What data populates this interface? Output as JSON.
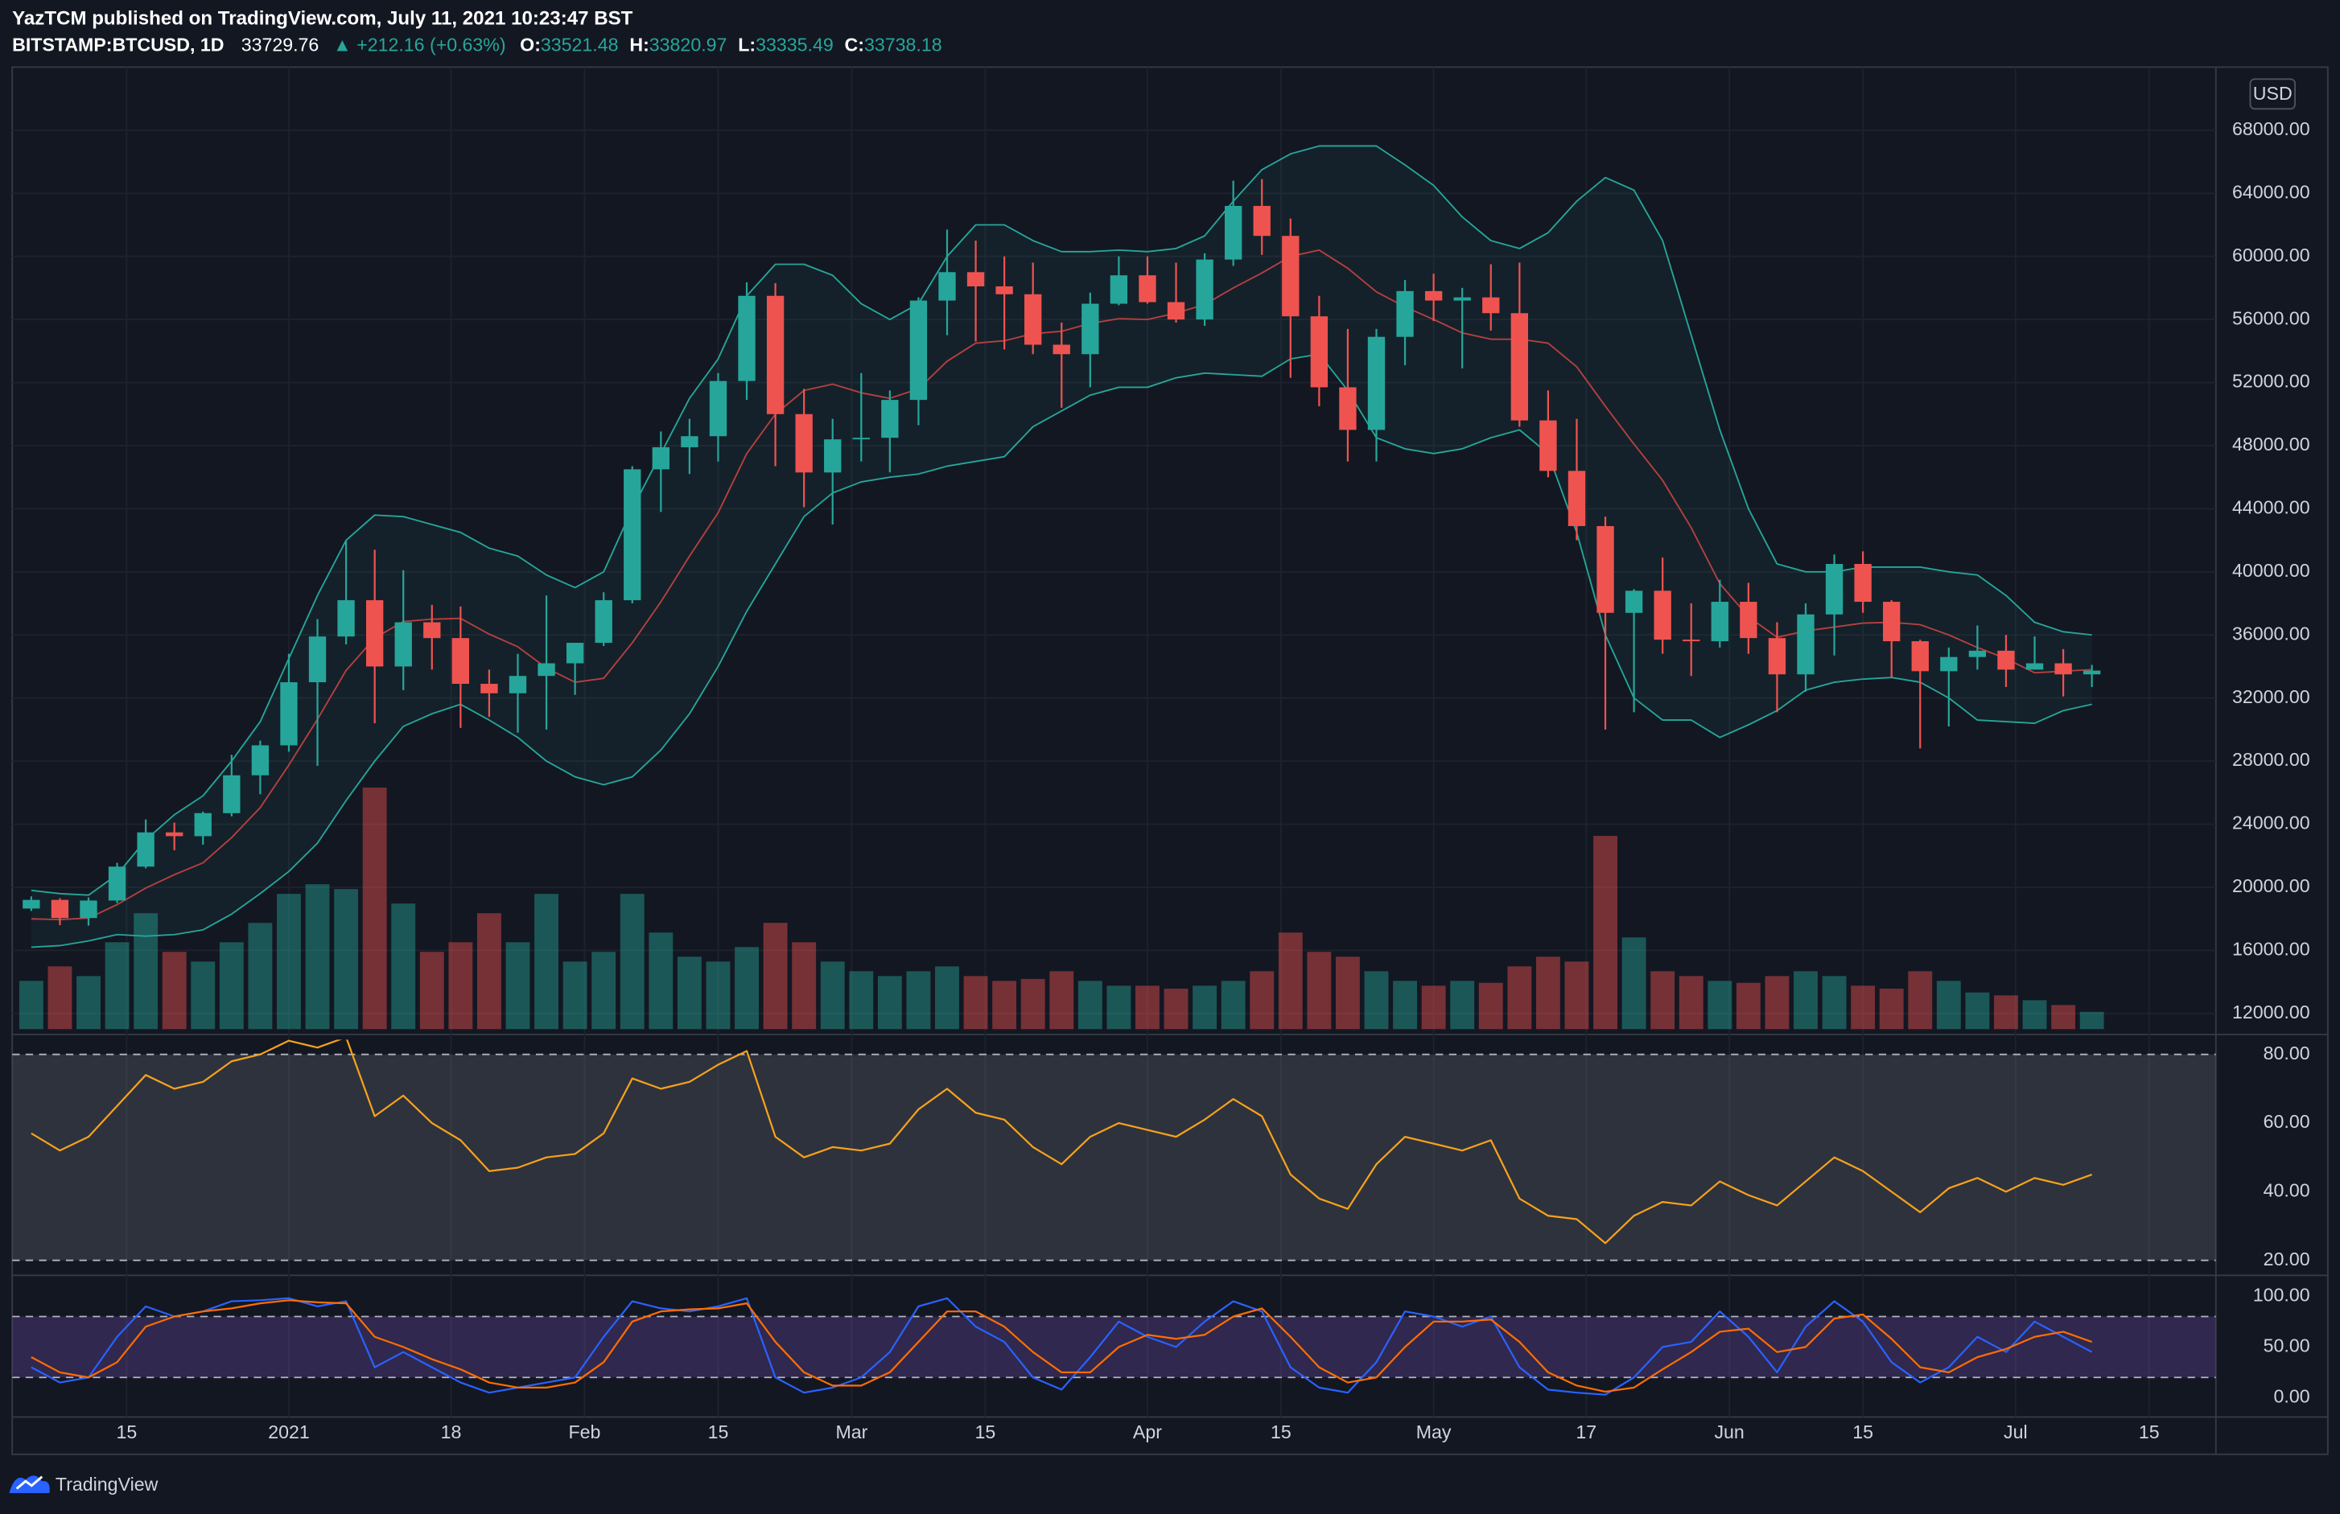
{
  "header": {
    "title": "YazTCM published on TradingView.com, July 11, 2021 10:23:47 BST",
    "symbol": "BITSTAMP:BTCUSD, 1D",
    "last": "33729.76",
    "change": "▲ +212.16 (+0.63%)",
    "ohlc": [
      {
        "label": "O:",
        "value": "33521.48"
      },
      {
        "label": "H:",
        "value": "33820.97"
      },
      {
        "label": "L:",
        "value": "33335.49"
      },
      {
        "label": "C:",
        "value": "33738.18"
      }
    ]
  },
  "brand": "TradingView",
  "chart_data": {
    "type": "candlestick",
    "currency": "USD",
    "up_color": "#26a69a",
    "down_color": "#ef5350",
    "x": [
      "2020-12-05",
      "2020-12-08",
      "2020-12-11",
      "2020-12-14",
      "2020-12-17",
      "2020-12-20",
      "2020-12-23",
      "2020-12-26",
      "2020-12-29",
      "2021-01-01",
      "2021-01-04",
      "2021-01-07",
      "2021-01-10",
      "2021-01-13",
      "2021-01-16",
      "2021-01-19",
      "2021-01-22",
      "2021-01-25",
      "2021-01-28",
      "2021-01-31",
      "2021-02-03",
      "2021-02-06",
      "2021-02-09",
      "2021-02-12",
      "2021-02-15",
      "2021-02-18",
      "2021-02-21",
      "2021-02-24",
      "2021-02-27",
      "2021-03-02",
      "2021-03-05",
      "2021-03-08",
      "2021-03-11",
      "2021-03-14",
      "2021-03-17",
      "2021-03-20",
      "2021-03-23",
      "2021-03-26",
      "2021-03-29",
      "2021-04-01",
      "2021-04-04",
      "2021-04-07",
      "2021-04-10",
      "2021-04-13",
      "2021-04-16",
      "2021-04-19",
      "2021-04-22",
      "2021-04-25",
      "2021-04-28",
      "2021-05-01",
      "2021-05-04",
      "2021-05-07",
      "2021-05-10",
      "2021-05-13",
      "2021-05-16",
      "2021-05-19",
      "2021-05-22",
      "2021-05-25",
      "2021-05-28",
      "2021-05-31",
      "2021-06-03",
      "2021-06-06",
      "2021-06-09",
      "2021-06-12",
      "2021-06-15",
      "2021-06-18",
      "2021-06-21",
      "2021-06-24",
      "2021-06-27",
      "2021-06-30",
      "2021-07-03",
      "2021-07-06",
      "2021-07-09"
    ],
    "open": [
      18650,
      19200,
      18050,
      19160,
      21310,
      23480,
      23240,
      24700,
      27100,
      29000,
      33000,
      35900,
      38200,
      34000,
      36800,
      35800,
      32900,
      32300,
      33400,
      34200,
      35500,
      38200,
      46500,
      47900,
      48600,
      52100,
      57500,
      50000,
      46300,
      48400,
      48500,
      50900,
      57200,
      59000,
      58100,
      57600,
      54400,
      53800,
      57000,
      58800,
      57100,
      56000,
      59800,
      63200,
      61300,
      56200,
      51700,
      49000,
      54900,
      57800,
      57200,
      57400,
      56400,
      49600,
      46400,
      42900,
      37400,
      38800,
      35700,
      35600,
      38100,
      35800,
      33500,
      37300,
      40500,
      38100,
      35600,
      33700,
      34600,
      35000,
      33800,
      34200,
      33500
    ],
    "high": [
      19420,
      19300,
      19350,
      21550,
      24300,
      24100,
      24800,
      28400,
      29300,
      34800,
      37000,
      41950,
      41400,
      40100,
      37900,
      37800,
      33800,
      34800,
      38500,
      35500,
      38700,
      46700,
      48900,
      49700,
      52600,
      58350,
      58300,
      51600,
      49700,
      52600,
      51500,
      57400,
      61700,
      61000,
      60000,
      59600,
      55800,
      57700,
      60000,
      60000,
      59600,
      60200,
      64800,
      64900,
      62400,
      57500,
      55400,
      55400,
      58500,
      58900,
      58000,
      59500,
      59600,
      51500,
      49700,
      43500,
      38900,
      40900,
      38000,
      39500,
      39300,
      36800,
      38000,
      41100,
      41300,
      38200,
      35700,
      35200,
      36600,
      36000,
      35900,
      35100,
      34100
    ],
    "low": [
      18500,
      17600,
      17570,
      19000,
      21200,
      22350,
      22700,
      24500,
      25900,
      28600,
      27700,
      35400,
      30400,
      32500,
      33800,
      30100,
      30800,
      29800,
      30000,
      32200,
      35300,
      38000,
      43800,
      46200,
      47000,
      50900,
      46700,
      44100,
      43000,
      47000,
      46300,
      49300,
      55000,
      54600,
      54100,
      53800,
      50400,
      51700,
      56900,
      57000,
      55800,
      55600,
      59400,
      60100,
      52300,
      50500,
      47000,
      47000,
      53100,
      55900,
      52900,
      55300,
      49200,
      46000,
      42000,
      30000,
      31100,
      34800,
      33400,
      35200,
      34800,
      31100,
      32400,
      34700,
      37400,
      33300,
      28800,
      30200,
      33800,
      32700,
      33800,
      32100,
      32700
    ],
    "close": [
      19200,
      18050,
      19160,
      21310,
      23480,
      23240,
      24700,
      27100,
      29000,
      33000,
      35900,
      38200,
      34000,
      36800,
      35800,
      32900,
      32300,
      33400,
      34200,
      35500,
      38200,
      46500,
      47900,
      48600,
      52100,
      57500,
      50000,
      46300,
      48400,
      48500,
      50900,
      57200,
      59000,
      58100,
      57600,
      54400,
      53800,
      57000,
      58800,
      57100,
      56000,
      59800,
      63200,
      61300,
      56200,
      51700,
      49000,
      54900,
      57800,
      57200,
      57400,
      56400,
      49600,
      46400,
      42900,
      37400,
      38800,
      35700,
      35600,
      38100,
      35800,
      33500,
      37300,
      40500,
      38100,
      35600,
      33700,
      34600,
      35000,
      33800,
      34200,
      33500,
      33738
    ],
    "volume": [
      5000,
      6500,
      5500,
      9000,
      12000,
      8000,
      7000,
      9000,
      11000,
      14000,
      15000,
      14500,
      25000,
      13000,
      8000,
      9000,
      12000,
      9000,
      14000,
      7000,
      8000,
      14000,
      10000,
      7500,
      7000,
      8500,
      11000,
      9000,
      7000,
      6000,
      5500,
      6000,
      6500,
      5500,
      5000,
      5200,
      6000,
      5000,
      4500,
      4500,
      4200,
      4500,
      5000,
      6000,
      10000,
      8000,
      7500,
      6000,
      5000,
      4500,
      5000,
      4800,
      6500,
      7500,
      7000,
      20000,
      9500,
      6000,
      5500,
      5000,
      4800,
      5500,
      6000,
      5500,
      4500,
      4200,
      6000,
      5000,
      3800,
      3500,
      3000,
      2500,
      1800
    ],
    "bollinger": {
      "color": "#26a69a",
      "basis_color": "#b7403f",
      "upper": [
        19800,
        19600,
        19500,
        20800,
        23000,
        24600,
        25800,
        28000,
        30500,
        34500,
        38500,
        42000,
        43600,
        43500,
        43000,
        42500,
        41500,
        41000,
        39800,
        39000,
        40000,
        44000,
        47500,
        51000,
        53500,
        57500,
        59500,
        59500,
        58800,
        57000,
        56000,
        57000,
        60000,
        62000,
        62000,
        61000,
        60300,
        60300,
        60400,
        60300,
        60500,
        61300,
        63500,
        65500,
        66500,
        67000,
        67000,
        67000,
        65800,
        64500,
        62500,
        61000,
        60500,
        61500,
        63500,
        65000,
        64200,
        61000,
        55000,
        49000,
        44000,
        40500,
        40000,
        40000,
        40300,
        40300,
        40300,
        40000,
        39800,
        38500,
        36800,
        36200,
        36000
      ],
      "basis": [
        18000,
        17950,
        18050,
        18900,
        19950,
        20800,
        21550,
        23150,
        25050,
        27750,
        30650,
        33750,
        35800,
        36850,
        37000,
        37050,
        36050,
        35250,
        33900,
        33000,
        33250,
        35500,
        38100,
        41000,
        43750,
        47500,
        50000,
        51500,
        51900,
        51350,
        51000,
        51600,
        53350,
        54500,
        54650,
        55100,
        55250,
        55750,
        56050,
        56000,
        56400,
        56950,
        58000,
        58950,
        60000,
        60400,
        59250,
        57750,
        56800,
        56000,
        55150,
        54750,
        54750,
        54500,
        53000,
        50500,
        48100,
        45800,
        42800,
        39250,
        37150,
        35850,
        36250,
        36500,
        36750,
        36800,
        36650,
        36000,
        35200,
        34500,
        33600,
        33700,
        33800
      ],
      "lower": [
        16200,
        16300,
        16600,
        17000,
        16900,
        17000,
        17300,
        18300,
        19600,
        21000,
        22800,
        25500,
        28000,
        30200,
        31000,
        31600,
        30600,
        29500,
        28000,
        27000,
        26500,
        27000,
        28700,
        31000,
        34000,
        37500,
        40500,
        43500,
        45000,
        45700,
        46000,
        46200,
        46700,
        47000,
        47300,
        49200,
        50200,
        51200,
        51700,
        51700,
        52300,
        52600,
        52500,
        52400,
        53500,
        53800,
        51500,
        48500,
        47800,
        47500,
        47800,
        48500,
        49000,
        47500,
        42500,
        36000,
        32000,
        30600,
        30600,
        29500,
        30300,
        31200,
        32500,
        33000,
        33200,
        33300,
        33000,
        32000,
        30600,
        30500,
        30400,
        31200,
        31600
      ]
    },
    "xlim": [
      "2020-12-03",
      "2021-07-22"
    ],
    "xticks": [
      {
        "value": "2020-12-15",
        "label": "15"
      },
      {
        "value": "2021-01-01",
        "label": "2021"
      },
      {
        "value": "2021-01-18",
        "label": "18"
      },
      {
        "value": "2021-02-01",
        "label": "Feb"
      },
      {
        "value": "2021-02-15",
        "label": "15"
      },
      {
        "value": "2021-03-01",
        "label": "Mar"
      },
      {
        "value": "2021-03-15",
        "label": "15"
      },
      {
        "value": "2021-04-01",
        "label": "Apr"
      },
      {
        "value": "2021-04-15",
        "label": "15"
      },
      {
        "value": "2021-05-01",
        "label": "May"
      },
      {
        "value": "2021-05-17",
        "label": "17"
      },
      {
        "value": "2021-06-01",
        "label": "Jun"
      },
      {
        "value": "2021-06-15",
        "label": "15"
      },
      {
        "value": "2021-07-01",
        "label": "Jul"
      },
      {
        "value": "2021-07-15",
        "label": "15"
      }
    ],
    "ylim": [
      11000,
      72000
    ],
    "yticks": [
      {
        "value": 12000,
        "label": "12000.00"
      },
      {
        "value": 16000,
        "label": "16000.00"
      },
      {
        "value": 20000,
        "label": "20000.00"
      },
      {
        "value": 24000,
        "label": "24000.00"
      },
      {
        "value": 28000,
        "label": "28000.00"
      },
      {
        "value": 32000,
        "label": "32000.00"
      },
      {
        "value": 36000,
        "label": "36000.00"
      },
      {
        "value": 40000,
        "label": "40000.00"
      },
      {
        "value": 44000,
        "label": "44000.00"
      },
      {
        "value": 48000,
        "label": "48000.00"
      },
      {
        "value": 52000,
        "label": "52000.00"
      },
      {
        "value": 56000,
        "label": "56000.00"
      },
      {
        "value": 60000,
        "label": "60000.00"
      },
      {
        "value": 64000,
        "label": "64000.00"
      },
      {
        "value": 68000,
        "label": "68000.00"
      }
    ],
    "grid": true,
    "rsi": {
      "type": "line",
      "color": "#f7a21b",
      "band_color": "#787b86",
      "bands": [
        20,
        80
      ],
      "values": [
        57,
        52,
        56,
        65,
        74,
        70,
        72,
        78,
        80,
        84,
        82,
        85,
        62,
        68,
        60,
        55,
        46,
        47,
        50,
        51,
        57,
        73,
        70,
        72,
        77,
        81,
        56,
        50,
        53,
        52,
        54,
        64,
        70,
        63,
        61,
        53,
        48,
        56,
        60,
        58,
        56,
        61,
        67,
        62,
        45,
        38,
        35,
        48,
        56,
        54,
        52,
        55,
        38,
        33,
        32,
        25,
        33,
        37,
        36,
        43,
        39,
        36,
        43,
        50,
        46,
        40,
        34,
        41,
        44,
        40,
        44,
        42,
        45
      ],
      "ylim": [
        16.5,
        84.3
      ],
      "yticks": [
        {
          "value": 20,
          "label": "20.00"
        },
        {
          "value": 40,
          "label": "40.00"
        },
        {
          "value": 60,
          "label": "60.00"
        },
        {
          "value": 80,
          "label": "80.00"
        }
      ]
    },
    "stoch": {
      "type": "line",
      "band_color": "#7e57c2",
      "bands": [
        20,
        80
      ],
      "series": [
        {
          "color": "#2962ff",
          "values": [
            30,
            15,
            20,
            60,
            90,
            80,
            85,
            95,
            96,
            98,
            90,
            95,
            30,
            45,
            30,
            15,
            5,
            10,
            15,
            20,
            60,
            95,
            88,
            85,
            90,
            98,
            20,
            5,
            10,
            20,
            45,
            90,
            98,
            70,
            55,
            20,
            8,
            40,
            75,
            60,
            50,
            75,
            95,
            85,
            30,
            10,
            5,
            35,
            85,
            80,
            70,
            80,
            30,
            8,
            5,
            3,
            20,
            50,
            55,
            85,
            60,
            25,
            70,
            95,
            75,
            35,
            15,
            30,
            60,
            45,
            75,
            60,
            45
          ]
        },
        {
          "color": "#ff6d00",
          "values": [
            40,
            25,
            20,
            35,
            70,
            80,
            85,
            88,
            93,
            96,
            94,
            93,
            60,
            50,
            38,
            28,
            15,
            10,
            10,
            15,
            35,
            75,
            85,
            87,
            88,
            93,
            55,
            25,
            12,
            12,
            25,
            55,
            85,
            85,
            70,
            45,
            25,
            25,
            50,
            62,
            58,
            62,
            80,
            88,
            60,
            30,
            15,
            20,
            50,
            75,
            75,
            77,
            55,
            25,
            12,
            6,
            10,
            28,
            45,
            65,
            68,
            45,
            50,
            78,
            82,
            58,
            30,
            25,
            40,
            48,
            60,
            65,
            55
          ]
        }
      ],
      "ylim": [
        -19,
        117.6
      ],
      "yticks": [
        {
          "value": 0,
          "label": "0.00"
        },
        {
          "value": 50,
          "label": "50.00"
        },
        {
          "value": 100,
          "label": "100.00"
        }
      ]
    }
  }
}
